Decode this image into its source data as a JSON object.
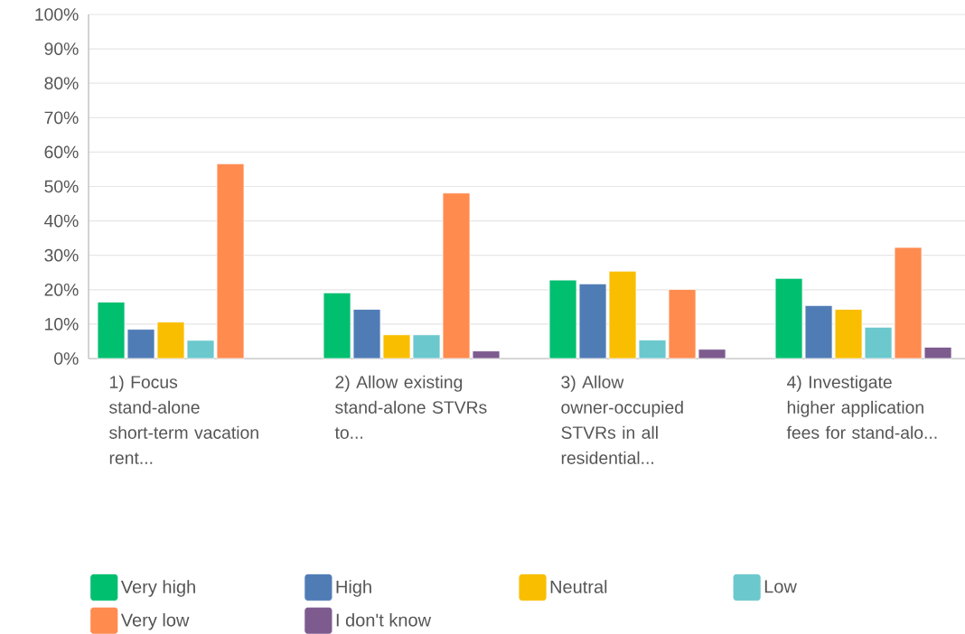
{
  "chart_data": {
    "type": "bar",
    "categories": [
      "1) Focus stand-alone short-term vacation rent...",
      "2) Allow existing stand-alone STVRs to...",
      "3) Allow owner-occupied STVRs in all residential...",
      "4) Investigate higher application fees for stand-alo..."
    ],
    "series": [
      {
        "name": "Very high",
        "color": "#00bf6f",
        "values": [
          16.4,
          19.1,
          22.8,
          23.3
        ]
      },
      {
        "name": "High",
        "color": "#507cb6",
        "values": [
          8.5,
          14.3,
          21.7,
          15.4
        ]
      },
      {
        "name": "Neutral",
        "color": "#f9be00",
        "values": [
          10.6,
          6.9,
          25.4,
          14.3
        ]
      },
      {
        "name": "Low",
        "color": "#6bc8cd",
        "values": [
          5.3,
          6.9,
          5.4,
          9.1
        ]
      },
      {
        "name": "Very low",
        "color": "#ff8b4f",
        "values": [
          56.6,
          48.1,
          20.1,
          32.3
        ]
      },
      {
        "name": "I don't know",
        "color": "#7d5b8f",
        "values": [
          null,
          2.2,
          2.7,
          3.3
        ]
      }
    ],
    "ylim": [
      0,
      100
    ],
    "yticks": [
      {
        "value": 0,
        "label": "0%"
      },
      {
        "value": 10,
        "label": "10%"
      },
      {
        "value": 20,
        "label": "20%"
      },
      {
        "value": 30,
        "label": "30%"
      },
      {
        "value": 40,
        "label": "40%"
      },
      {
        "value": 50,
        "label": "50%"
      },
      {
        "value": 60,
        "label": "60%"
      },
      {
        "value": 70,
        "label": "70%"
      },
      {
        "value": 80,
        "label": "80%"
      },
      {
        "value": 90,
        "label": "90%"
      },
      {
        "value": 100,
        "label": "100%"
      }
    ],
    "grid": "y",
    "legend": "bottom"
  }
}
